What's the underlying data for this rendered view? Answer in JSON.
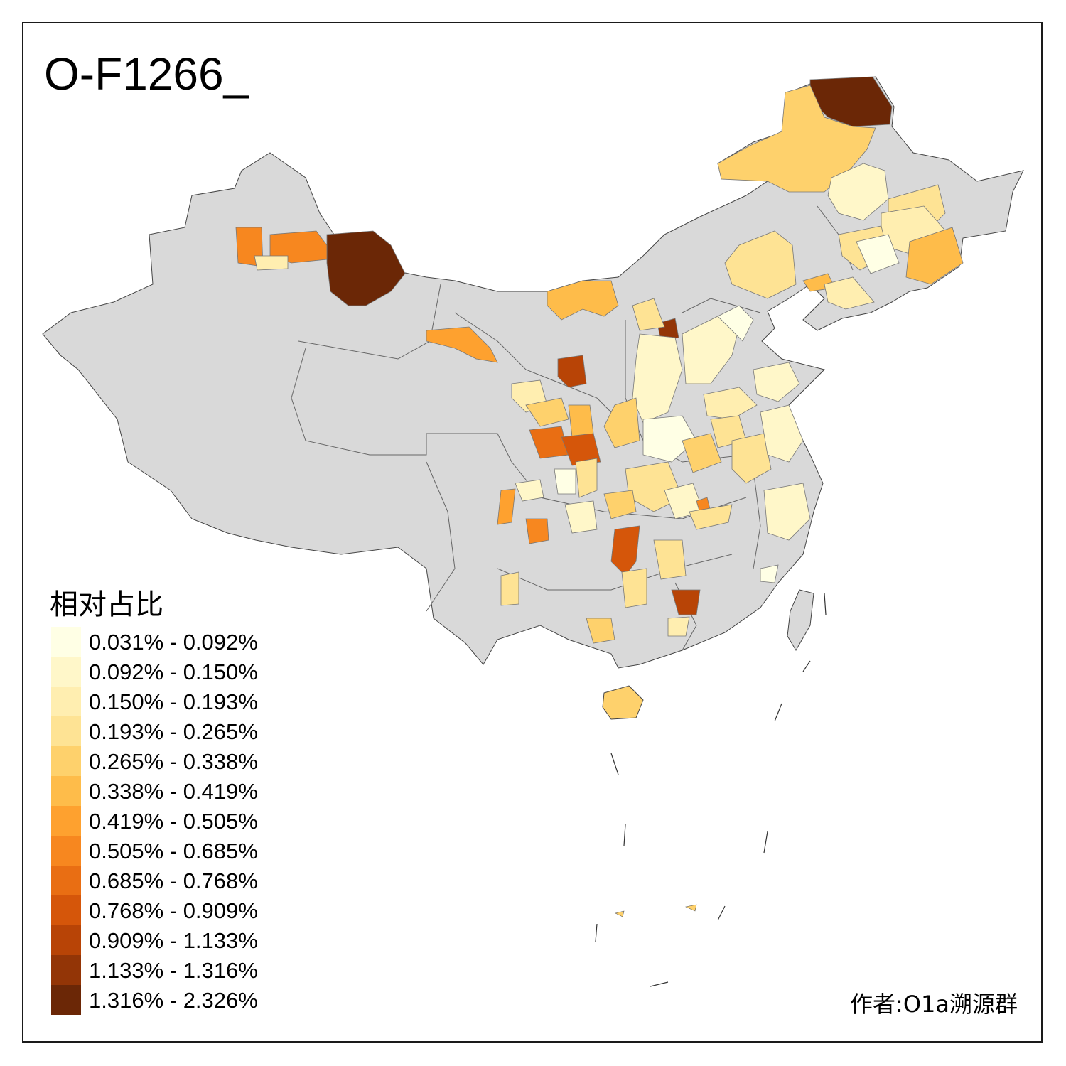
{
  "title": "O-F1266_",
  "legend": {
    "title": "相对占比",
    "items": [
      {
        "label": "0.031% - 0.092%",
        "color": "#ffffe5"
      },
      {
        "label": "0.092% - 0.150%",
        "color": "#fff7c9"
      },
      {
        "label": "0.150% - 0.193%",
        "color": "#ffeeb0"
      },
      {
        "label": "0.193% - 0.265%",
        "color": "#fee394"
      },
      {
        "label": "0.265% - 0.338%",
        "color": "#fed16c"
      },
      {
        "label": "0.338% - 0.419%",
        "color": "#febc4a"
      },
      {
        "label": "0.419% - 0.505%",
        "color": "#fea12f"
      },
      {
        "label": "0.505% - 0.685%",
        "color": "#f7871f"
      },
      {
        "label": "0.685% - 0.768%",
        "color": "#e96e13"
      },
      {
        "label": "0.768% - 0.909%",
        "color": "#d5560a"
      },
      {
        "label": "0.909% - 1.133%",
        "color": "#b84406"
      },
      {
        "label": "1.133% - 1.316%",
        "color": "#933506"
      },
      {
        "label": "1.316% - 2.326%",
        "color": "#6b2706"
      }
    ]
  },
  "credit": "作者:O1a溯源群",
  "colors": {
    "no_data": "#d9d9d9",
    "border": "#555555"
  }
}
